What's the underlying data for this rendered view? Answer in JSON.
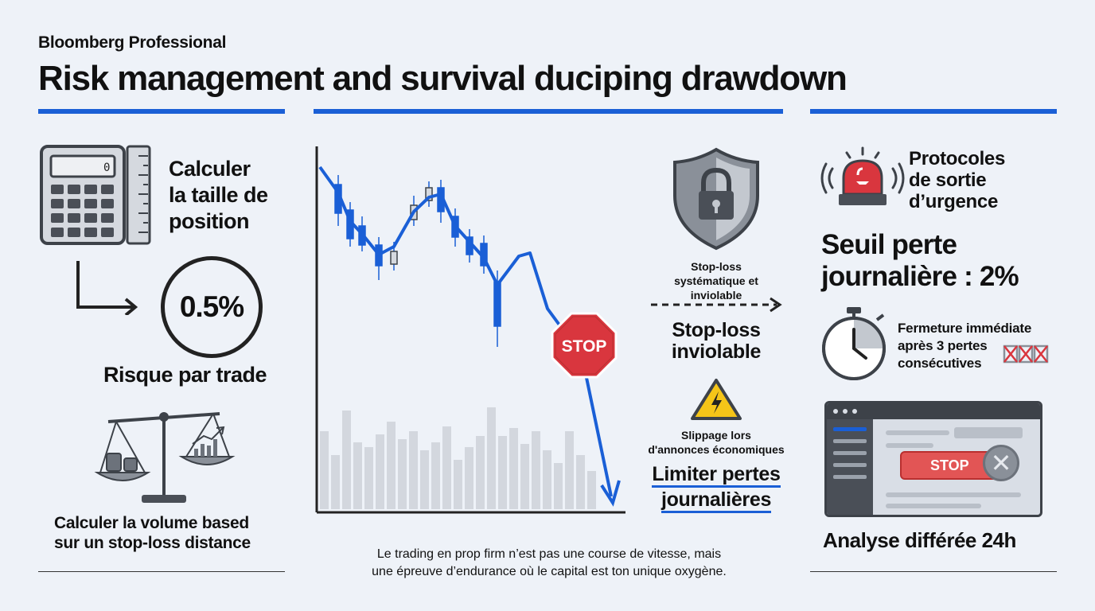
{
  "header": {
    "brand": "Bloomberg Professional",
    "title": "Risk management and survival duciping drawdown"
  },
  "left": {
    "calc_label_1": "Calculer",
    "calc_label_2": "la taille de",
    "calc_label_3": "position",
    "calculator_display": "0",
    "risk_value": "0.5%",
    "risk_label": "Risque par trade",
    "volume_label_1": "Calculer la volume based",
    "volume_label_2": "sur un stop-loss distance"
  },
  "center": {
    "stop_sign": "STOP",
    "quote_1": "Le trading en prop firm n’est pas une course de vitesse, mais",
    "quote_2": "une épreuve d’endurance où le capital est ton unique oxygène."
  },
  "middle_right": {
    "stop_small_1": "Stop-loss",
    "stop_small_2": "systématique et",
    "stop_small_3": "inviolable",
    "stop_big_1": "Stop-loss",
    "stop_big_2": "inviolable",
    "slippage_1": "Slippage lors",
    "slippage_2": "d'annonces économiques",
    "limit_1": "Limiter pertes",
    "limit_2": "journalières"
  },
  "right": {
    "protocols_1": "Protocoles",
    "protocols_2": "de sortie",
    "protocols_3": "d’urgence",
    "threshold_1": "Seuil perte",
    "threshold_2": "journalière : 2%",
    "close_1": "Fermeture immédiate",
    "close_2": "après 3 pertes",
    "close_3": "consécutives",
    "stop_button": "STOP",
    "analysis": "Analyse différée 24h"
  },
  "colors": {
    "accent": "#1a5fd6",
    "danger": "#d9363e",
    "warning": "#f5c518",
    "background": "#eef2f8"
  },
  "icons": [
    "calculator-icon",
    "ruler-icon",
    "arrow-right-icon",
    "balance-scale-icon",
    "shield-lock-icon",
    "warning-icon",
    "siren-icon",
    "stopwatch-icon",
    "stop-sign-icon"
  ]
}
